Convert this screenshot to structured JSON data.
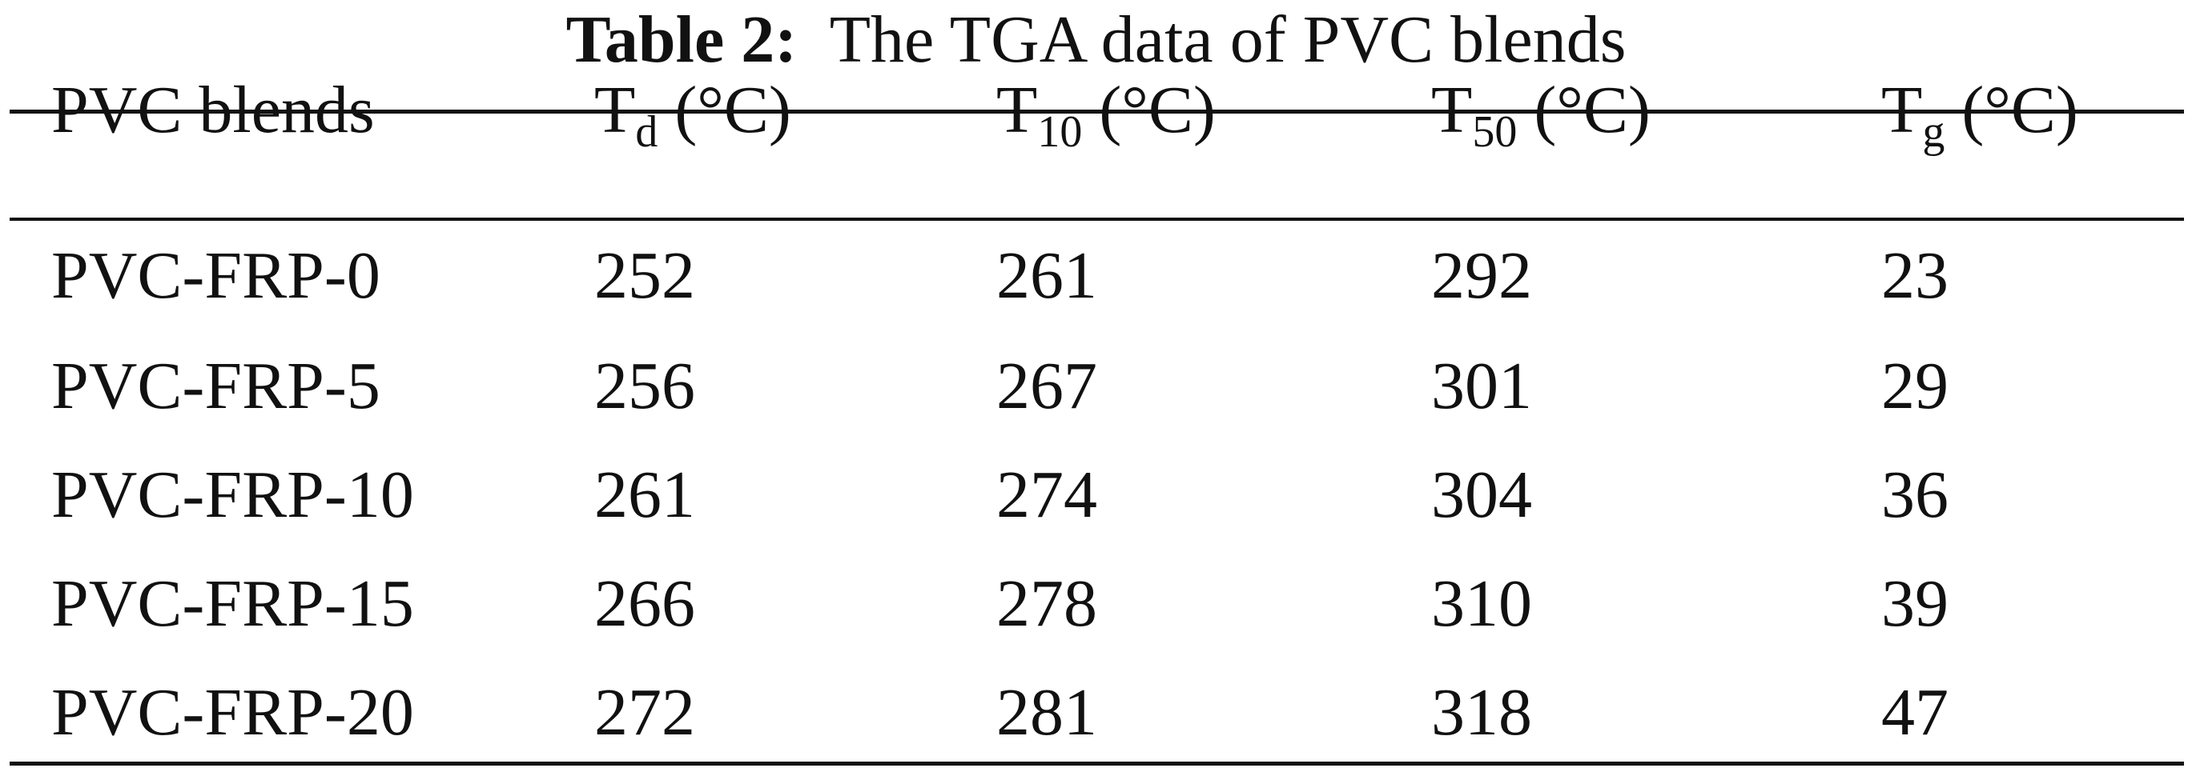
{
  "caption": {
    "label": "Table 2:",
    "text": "The TGA data of PVC blends"
  },
  "table": {
    "headers": [
      {
        "main": "PVC blends",
        "sub": "",
        "unit": ""
      },
      {
        "main": "T",
        "sub": "d",
        "unit": "(°C)"
      },
      {
        "main": "T",
        "sub": "10",
        "unit": "(°C)"
      },
      {
        "main": "T",
        "sub": "50",
        "unit": "(°C)"
      },
      {
        "main": "T",
        "sub": "g",
        "unit": "(°C)"
      }
    ],
    "rows": [
      [
        "PVC-FRP-0",
        "252",
        "261",
        "292",
        "23"
      ],
      [
        "PVC-FRP-5",
        "256",
        "267",
        "301",
        "29"
      ],
      [
        "PVC-FRP-10",
        "261",
        "274",
        "304",
        "36"
      ],
      [
        "PVC-FRP-15",
        "266",
        "278",
        "310",
        "39"
      ],
      [
        "PVC-FRP-20",
        "272",
        "281",
        "318",
        "47"
      ]
    ]
  }
}
